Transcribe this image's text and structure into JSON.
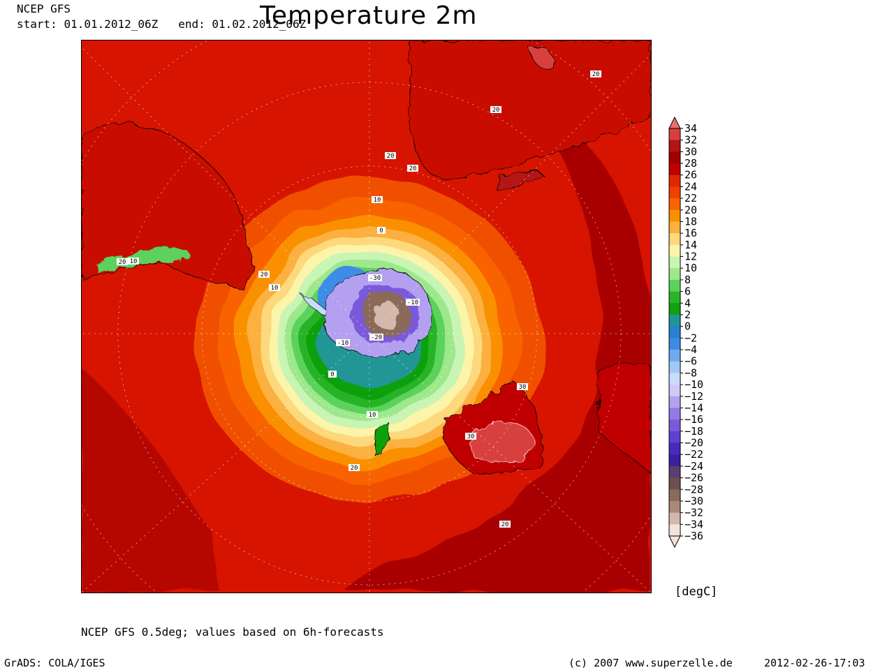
{
  "header": {
    "model": "NCEP GFS",
    "start_label": "start:",
    "start": "01.01.2012_06Z",
    "end_label": "end:",
    "end": "01.02.2012_06Z",
    "title": "Temperature 2m"
  },
  "map": {
    "projection": "south-polar-stereographic",
    "variable": "2m temperature",
    "contour_labels": [
      "20",
      "20",
      "20",
      "20",
      "10",
      "0",
      "-30",
      "-10",
      "-20",
      "-10",
      "0",
      "10",
      "20",
      "20",
      "10",
      "20",
      "10",
      "30",
      "30",
      "20"
    ]
  },
  "colorbar": {
    "unit": "[degC]",
    "ticks": [
      "34",
      "32",
      "30",
      "28",
      "26",
      "24",
      "22",
      "20",
      "18",
      "16",
      "14",
      "12",
      "10",
      "8",
      "6",
      "4",
      "2",
      "0",
      "-2",
      "-4",
      "-6",
      "-8",
      "-10",
      "-12",
      "-14",
      "-16",
      "-18",
      "-20",
      "-22",
      "-24",
      "-26",
      "-28",
      "-30",
      "-32",
      "-34",
      "-36"
    ],
    "colors": {
      "34": "#e87070",
      "32": "#d84040",
      "30": "#b41414",
      "28": "#a00000",
      "26": "#c00000",
      "24": "#e02800",
      "22": "#f04000",
      "20": "#f86400",
      "18": "#fa9000",
      "16": "#fcb040",
      "14": "#fdd87c",
      "12": "#fcf4a8",
      "10": "#c8f4b4",
      "8": "#9ee88c",
      "6": "#5cd25c",
      "4": "#28b428",
      "2": "#10a010",
      "0": "#209696",
      "-2": "#2880d0",
      "-4": "#3c8ce6",
      "-6": "#6eaaf0",
      "-8": "#a0c8f8",
      "-10": "#c8dcfa",
      "-12": "#d2c8f4",
      "-14": "#b4a0f0",
      "-16": "#9478e6",
      "-18": "#7a5ad8",
      "-20": "#6040d0",
      "-22": "#4a28c0",
      "-24": "#3c1ea0",
      "-26": "#5a4070",
      "-28": "#6c5050",
      "-30": "#8c6a5a",
      "-32": "#ab8878",
      "-34": "#d4b8ac",
      "-36": "#f4e4dc"
    }
  },
  "footer": {
    "note": "NCEP GFS 0.5deg; values based on 6h-forecasts",
    "software": "GrADS: COLA/IGES",
    "copyright": "(c) 2007 www.superzelle.de",
    "timestamp": "2012-02-26-17:03"
  }
}
